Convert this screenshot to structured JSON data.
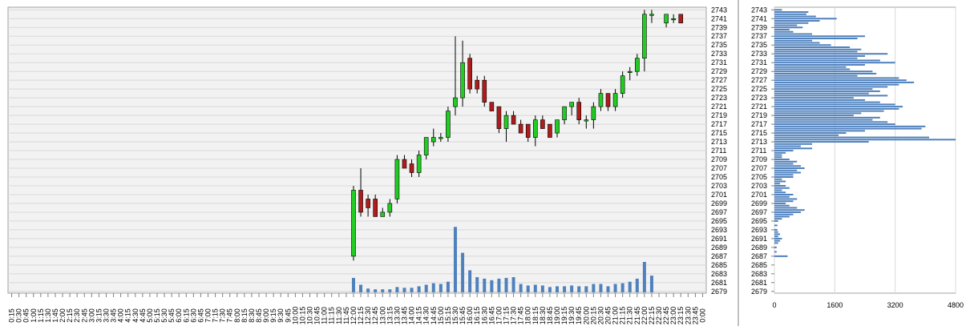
{
  "chart_data": [
    {
      "type": "candlestick",
      "x_tick_labels": [
        "0:15",
        "0:30",
        "0:45",
        "1:00",
        "1:15",
        "1:30",
        "1:45",
        "2:00",
        "2:15",
        "2:30",
        "2:45",
        "3:00",
        "3:15",
        "3:30",
        "3:45",
        "4:00",
        "4:15",
        "4:30",
        "4:45",
        "5:00",
        "5:15",
        "5:30",
        "5:45",
        "6:00",
        "6:15",
        "6:30",
        "6:45",
        "7:00",
        "7:15",
        "7:30",
        "7:45",
        "8:00",
        "8:15",
        "8:30",
        "8:45",
        "9:00",
        "9:15",
        "9:30",
        "9:45",
        "10:00",
        "10:15",
        "10:30",
        "10:45",
        "11:00",
        "11:15",
        "11:30",
        "11:45",
        "12:00",
        "12:15",
        "12:30",
        "12:45",
        "13:00",
        "13:15",
        "13:30",
        "13:45",
        "14:00",
        "14:15",
        "14:30",
        "14:45",
        "15:00",
        "15:15",
        "15:30",
        "15:45",
        "16:00",
        "16:15",
        "16:30",
        "16:45",
        "17:00",
        "17:15",
        "17:30",
        "17:45",
        "18:00",
        "18:15",
        "18:30",
        "18:45",
        "19:00",
        "19:15",
        "19:30",
        "19:45",
        "20:00",
        "20:15",
        "20:30",
        "20:45",
        "21:00",
        "21:15",
        "21:30",
        "21:45",
        "22:00",
        "22:15",
        "22:30",
        "22:45",
        "23:00",
        "23:15",
        "23:30",
        "23:45",
        "0:00"
      ],
      "y_tick_labels": [
        "2743",
        "2741",
        "2739",
        "2737",
        "2735",
        "2733",
        "2731",
        "2729",
        "2727",
        "2725",
        "2723",
        "2721",
        "2719",
        "2717",
        "2715",
        "2713",
        "2711",
        "2709",
        "2707",
        "2705",
        "2703",
        "2701",
        "2699",
        "2697",
        "2695",
        "2693",
        "2691",
        "2689",
        "2687",
        "2685",
        "2683",
        "2681",
        "2679"
      ],
      "ylim": [
        2678.6,
        2743.6
      ],
      "grid": true,
      "candles": [
        {
          "time": "12:00",
          "open": 2687,
          "high": 2703,
          "low": 2686,
          "close": 2702,
          "volume": 190
        },
        {
          "time": "12:15",
          "open": 2702,
          "high": 2707,
          "low": 2696,
          "close": 2697,
          "volume": 100
        },
        {
          "time": "12:30",
          "open": 2700,
          "high": 2701,
          "low": 2696,
          "close": 2698,
          "volume": 50
        },
        {
          "time": "12:45",
          "open": 2700,
          "high": 2701,
          "low": 2696,
          "close": 2696,
          "volume": 40
        },
        {
          "time": "13:00",
          "open": 2696,
          "high": 2698,
          "low": 2696,
          "close": 2697,
          "volume": 40
        },
        {
          "time": "13:15",
          "open": 2697,
          "high": 2700,
          "low": 2696,
          "close": 2699,
          "volume": 40
        },
        {
          "time": "13:30",
          "open": 2700,
          "high": 2710,
          "low": 2699,
          "close": 2709,
          "volume": 70
        },
        {
          "time": "13:45",
          "open": 2709,
          "high": 2710,
          "low": 2707,
          "close": 2707,
          "volume": 60
        },
        {
          "time": "14:00",
          "open": 2708,
          "high": 2709,
          "low": 2705,
          "close": 2706,
          "volume": 60
        },
        {
          "time": "14:15",
          "open": 2706,
          "high": 2711,
          "low": 2705,
          "close": 2710,
          "volume": 80
        },
        {
          "time": "14:30",
          "open": 2710,
          "high": 2714,
          "low": 2709,
          "close": 2714,
          "volume": 100
        },
        {
          "time": "14:45",
          "open": 2713,
          "high": 2716,
          "low": 2712,
          "close": 2714,
          "volume": 120
        },
        {
          "time": "15:00",
          "open": 2714,
          "high": 2715,
          "low": 2713,
          "close": 2714,
          "volume": 110
        },
        {
          "time": "15:15",
          "open": 2714,
          "high": 2721,
          "low": 2713,
          "close": 2720,
          "volume": 140
        },
        {
          "time": "15:30",
          "open": 2721,
          "high": 2737,
          "low": 2719,
          "close": 2723,
          "volume": 860
        },
        {
          "time": "15:45",
          "open": 2723,
          "high": 2736,
          "low": 2721,
          "close": 2731,
          "volume": 520
        },
        {
          "time": "16:00",
          "open": 2732,
          "high": 2733,
          "low": 2724,
          "close": 2725,
          "volume": 290
        },
        {
          "time": "16:15",
          "open": 2727,
          "high": 2728,
          "low": 2724,
          "close": 2725,
          "volume": 200
        },
        {
          "time": "16:30",
          "open": 2727,
          "high": 2728,
          "low": 2721,
          "close": 2722,
          "volume": 180
        },
        {
          "time": "16:45",
          "open": 2722,
          "high": 2722,
          "low": 2720,
          "close": 2720,
          "volume": 160
        },
        {
          "time": "17:00",
          "open": 2721,
          "high": 2721,
          "low": 2715,
          "close": 2716,
          "volume": 180
        },
        {
          "time": "17:15",
          "open": 2716,
          "high": 2720,
          "low": 2713,
          "close": 2719,
          "volume": 190
        },
        {
          "time": "17:30",
          "open": 2719,
          "high": 2720,
          "low": 2717,
          "close": 2717,
          "volume": 200
        },
        {
          "time": "17:45",
          "open": 2717,
          "high": 2718,
          "low": 2715,
          "close": 2715,
          "volume": 110
        },
        {
          "time": "18:00",
          "open": 2717,
          "high": 2717,
          "low": 2713,
          "close": 2714,
          "volume": 90
        },
        {
          "time": "18:15",
          "open": 2714,
          "high": 2719,
          "low": 2712,
          "close": 2718,
          "volume": 100
        },
        {
          "time": "18:30",
          "open": 2718,
          "high": 2719,
          "low": 2716,
          "close": 2716,
          "volume": 90
        },
        {
          "time": "18:45",
          "open": 2717,
          "high": 2717,
          "low": 2714,
          "close": 2714,
          "volume": 70
        },
        {
          "time": "19:00",
          "open": 2715,
          "high": 2718,
          "low": 2714,
          "close": 2718,
          "volume": 80
        },
        {
          "time": "19:15",
          "open": 2718,
          "high": 2721,
          "low": 2717,
          "close": 2721,
          "volume": 80
        },
        {
          "time": "19:30",
          "open": 2721,
          "high": 2722,
          "low": 2719,
          "close": 2722,
          "volume": 90
        },
        {
          "time": "19:45",
          "open": 2722,
          "high": 2723,
          "low": 2717,
          "close": 2718,
          "volume": 80
        },
        {
          "time": "20:00",
          "open": 2718,
          "high": 2719,
          "low": 2716,
          "close": 2718,
          "volume": 80
        },
        {
          "time": "20:15",
          "open": 2718,
          "high": 2722,
          "low": 2716,
          "close": 2721,
          "volume": 110
        },
        {
          "time": "20:30",
          "open": 2721,
          "high": 2725,
          "low": 2720,
          "close": 2724,
          "volume": 110
        },
        {
          "time": "20:45",
          "open": 2724,
          "high": 2724,
          "low": 2720,
          "close": 2721,
          "volume": 80
        },
        {
          "time": "21:00",
          "open": 2721,
          "high": 2725,
          "low": 2720,
          "close": 2724,
          "volume": 110
        },
        {
          "time": "21:15",
          "open": 2724,
          "high": 2729,
          "low": 2723,
          "close": 2728,
          "volume": 120
        },
        {
          "time": "21:30",
          "open": 2729,
          "high": 2730,
          "low": 2727,
          "close": 2729,
          "volume": 140
        },
        {
          "time": "21:45",
          "open": 2729,
          "high": 2733,
          "low": 2728,
          "close": 2732,
          "volume": 180
        },
        {
          "time": "22:00",
          "open": 2732,
          "high": 2743,
          "low": 2729,
          "close": 2742,
          "volume": 400
        },
        {
          "time": "22:15",
          "open": 2742,
          "high": 2743,
          "low": 2740,
          "close": 2742,
          "volume": 220
        },
        {
          "time": "22:30",
          "open": null,
          "high": null,
          "low": null,
          "close": null,
          "volume": 0
        },
        {
          "time": "22:45",
          "open": 2740,
          "high": 2742,
          "low": 2739,
          "close": 2742,
          "volume": 0
        },
        {
          "time": "23:00",
          "open": 2741,
          "high": 2742,
          "low": 2740,
          "close": 2741,
          "volume": 0
        },
        {
          "time": "23:15",
          "open": 2742,
          "high": 2742,
          "low": 2740,
          "close": 2740,
          "volume": 0
        }
      ],
      "colors": {
        "up": "#22cc22",
        "down": "#b01c1c",
        "volume": "#4f81bd",
        "grid": "#d9d9d9",
        "plot_bg": "#f2f2f2",
        "text": "#000000"
      }
    },
    {
      "type": "bar",
      "orientation": "horizontal",
      "x_tick_labels": [
        "0",
        "1600",
        "3200",
        "4800"
      ],
      "xlim": [
        0,
        4800
      ],
      "y_tick_labels": [
        "2743",
        "2741",
        "2739",
        "2737",
        "2735",
        "2733",
        "2731",
        "2729",
        "2727",
        "2725",
        "2723",
        "2721",
        "2719",
        "2717",
        "2715",
        "2713",
        "2711",
        "2709",
        "2707",
        "2705",
        "2703",
        "2701",
        "2699",
        "2697",
        "2695",
        "2693",
        "2691",
        "2689",
        "2687",
        "2685",
        "2683",
        "2681",
        "2679"
      ],
      "ylim": [
        2678.6,
        2743.6
      ],
      "grid": true,
      "profile": [
        {
          "price": 2743.0,
          "volume": 200
        },
        {
          "price": 2742.5,
          "volume": 900
        },
        {
          "price": 2742.0,
          "volume": 850
        },
        {
          "price": 2741.5,
          "volume": 1100
        },
        {
          "price": 2741.0,
          "volume": 1650
        },
        {
          "price": 2740.5,
          "volume": 1200
        },
        {
          "price": 2740.0,
          "volume": 900
        },
        {
          "price": 2739.5,
          "volume": 600
        },
        {
          "price": 2739.0,
          "volume": 750
        },
        {
          "price": 2738.5,
          "volume": 400
        },
        {
          "price": 2738.0,
          "volume": 500
        },
        {
          "price": 2737.5,
          "volume": 1000
        },
        {
          "price": 2737.0,
          "volume": 2400
        },
        {
          "price": 2736.5,
          "volume": 2200
        },
        {
          "price": 2736.0,
          "volume": 1000
        },
        {
          "price": 2735.5,
          "volume": 1200
        },
        {
          "price": 2735.0,
          "volume": 1500
        },
        {
          "price": 2734.5,
          "volume": 2000
        },
        {
          "price": 2734.0,
          "volume": 2300
        },
        {
          "price": 2733.5,
          "volume": 2200
        },
        {
          "price": 2733.0,
          "volume": 3000
        },
        {
          "price": 2732.5,
          "volume": 2400
        },
        {
          "price": 2732.0,
          "volume": 2200
        },
        {
          "price": 2731.5,
          "volume": 2800
        },
        {
          "price": 2731.0,
          "volume": 3200
        },
        {
          "price": 2730.5,
          "volume": 2400
        },
        {
          "price": 2730.0,
          "volume": 1900
        },
        {
          "price": 2729.5,
          "volume": 2000
        },
        {
          "price": 2729.0,
          "volume": 2600
        },
        {
          "price": 2728.5,
          "volume": 2700
        },
        {
          "price": 2728.0,
          "volume": 2200
        },
        {
          "price": 2727.5,
          "volume": 3300
        },
        {
          "price": 2727.0,
          "volume": 3500
        },
        {
          "price": 2726.5,
          "volume": 3700
        },
        {
          "price": 2726.0,
          "volume": 3300
        },
        {
          "price": 2725.5,
          "volume": 3000
        },
        {
          "price": 2725.0,
          "volume": 2600
        },
        {
          "price": 2724.5,
          "volume": 2800
        },
        {
          "price": 2724.0,
          "volume": 2500
        },
        {
          "price": 2723.5,
          "volume": 3000
        },
        {
          "price": 2723.0,
          "volume": 2100
        },
        {
          "price": 2722.5,
          "volume": 2400
        },
        {
          "price": 2722.0,
          "volume": 2800
        },
        {
          "price": 2721.5,
          "volume": 3200
        },
        {
          "price": 2721.0,
          "volume": 3400
        },
        {
          "price": 2720.5,
          "volume": 3300
        },
        {
          "price": 2720.0,
          "volume": 2900
        },
        {
          "price": 2719.5,
          "volume": 2300
        },
        {
          "price": 2719.0,
          "volume": 2100
        },
        {
          "price": 2718.5,
          "volume": 2800
        },
        {
          "price": 2718.0,
          "volume": 2600
        },
        {
          "price": 2717.5,
          "volume": 3000
        },
        {
          "price": 2717.0,
          "volume": 3200
        },
        {
          "price": 2716.5,
          "volume": 4000
        },
        {
          "price": 2716.0,
          "volume": 3900
        },
        {
          "price": 2715.5,
          "volume": 2400
        },
        {
          "price": 2715.0,
          "volume": 1900
        },
        {
          "price": 2714.5,
          "volume": 1700
        },
        {
          "price": 2714.0,
          "volume": 4100
        },
        {
          "price": 2713.5,
          "volume": 4800
        },
        {
          "price": 2713.0,
          "volume": 2500
        },
        {
          "price": 2712.5,
          "volume": 1000
        },
        {
          "price": 2712.0,
          "volume": 700
        },
        {
          "price": 2711.5,
          "volume": 1000
        },
        {
          "price": 2711.0,
          "volume": 500
        },
        {
          "price": 2710.5,
          "volume": 300
        },
        {
          "price": 2710.0,
          "volume": 200
        },
        {
          "price": 2709.5,
          "volume": 200
        },
        {
          "price": 2709.0,
          "volume": 400
        },
        {
          "price": 2708.5,
          "volume": 600
        },
        {
          "price": 2708.0,
          "volume": 500
        },
        {
          "price": 2707.5,
          "volume": 700
        },
        {
          "price": 2707.0,
          "volume": 800
        },
        {
          "price": 2706.5,
          "volume": 600
        },
        {
          "price": 2706.0,
          "volume": 700
        },
        {
          "price": 2705.5,
          "volume": 500
        },
        {
          "price": 2705.0,
          "volume": 500
        },
        {
          "price": 2704.5,
          "volume": 200
        },
        {
          "price": 2704.0,
          "volume": 300
        },
        {
          "price": 2703.5,
          "volume": 150
        },
        {
          "price": 2703.0,
          "volume": 300
        },
        {
          "price": 2702.5,
          "volume": 400
        },
        {
          "price": 2702.0,
          "volume": 200
        },
        {
          "price": 2701.5,
          "volume": 300
        },
        {
          "price": 2701.0,
          "volume": 500
        },
        {
          "price": 2700.5,
          "volume": 400
        },
        {
          "price": 2700.0,
          "volume": 600
        },
        {
          "price": 2699.5,
          "volume": 500
        },
        {
          "price": 2699.0,
          "volume": 300
        },
        {
          "price": 2698.5,
          "volume": 400
        },
        {
          "price": 2698.0,
          "volume": 600
        },
        {
          "price": 2697.5,
          "volume": 800
        },
        {
          "price": 2697.0,
          "volume": 700
        },
        {
          "price": 2696.5,
          "volume": 500
        },
        {
          "price": 2696.0,
          "volume": 400
        },
        {
          "price": 2695.5,
          "volume": 200
        },
        {
          "price": 2695.0,
          "volume": 100
        },
        {
          "price": 2694.0,
          "volume": 80
        },
        {
          "price": 2693.0,
          "volume": 80
        },
        {
          "price": 2692.5,
          "volume": 100
        },
        {
          "price": 2692.0,
          "volume": 150
        },
        {
          "price": 2691.5,
          "volume": 100
        },
        {
          "price": 2691.0,
          "volume": 200
        },
        {
          "price": 2690.5,
          "volume": 150
        },
        {
          "price": 2690.0,
          "volume": 100
        },
        {
          "price": 2689.0,
          "volume": 60
        },
        {
          "price": 2688.0,
          "volume": 60
        },
        {
          "price": 2687.0,
          "volume": 350
        }
      ],
      "colors": {
        "bar": "#4f81bd",
        "grid": "#d9d9d9",
        "text": "#000000"
      }
    }
  ]
}
